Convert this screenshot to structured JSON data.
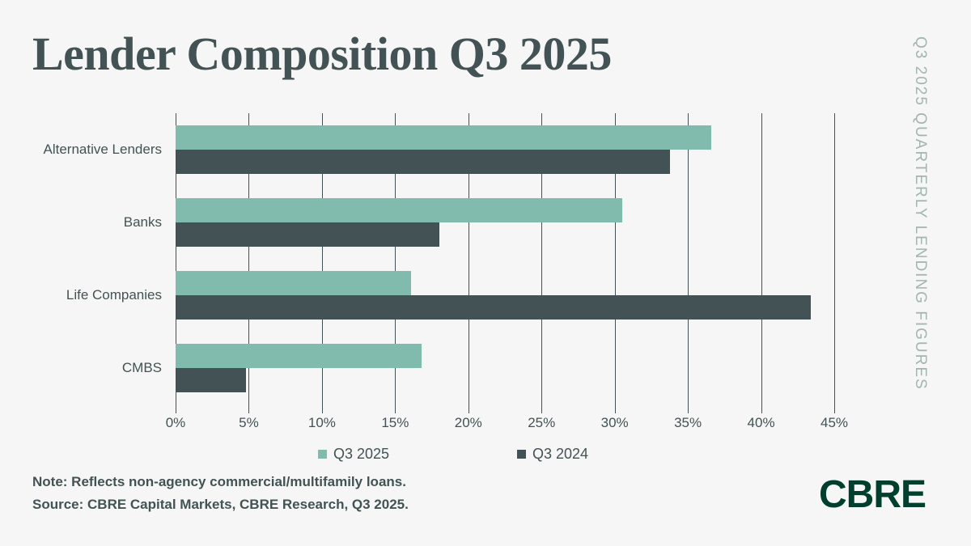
{
  "title": "Lender Composition Q3 2025",
  "tagline": "Q3 2025 QUARTERLY LENDING FIGURES",
  "note": {
    "line1": "Note: Reflects non-agency commercial/multifamily loans.",
    "line2": "Source: CBRE Capital Markets, CBRE Research, Q3 2025."
  },
  "logo_text": "CBRE",
  "colors": {
    "background": "#f5f6f5",
    "q3_2025_bar": "#80bbad",
    "q3_2024_bar": "#435254",
    "title_text": "#435254",
    "tagline_text": "#a3b5af",
    "axis_text": "#435254",
    "gridline": "#435254",
    "logo_green": "#003f2d"
  },
  "chart_data": {
    "type": "bar",
    "orientation": "horizontal",
    "title": "Lender Composition Q3 2025",
    "categories": [
      "Alternative Lenders",
      "Banks",
      "Life Companies",
      "CMBS"
    ],
    "series": [
      {
        "name": "Q3 2025",
        "color": "#80bbad",
        "values": [
          36.6,
          30.5,
          16.1,
          16.8
        ]
      },
      {
        "name": "Q3 2024",
        "color": "#435254",
        "values": [
          33.8,
          18.0,
          43.4,
          4.8
        ]
      }
    ],
    "xlabel": "",
    "ylabel": "",
    "xlim": [
      0,
      45
    ],
    "x_step": 5,
    "x_ticks": [
      "0%",
      "5%",
      "10%",
      "15%",
      "20%",
      "25%",
      "30%",
      "35%",
      "40%",
      "45%"
    ],
    "grid": true,
    "legend_position": "bottom"
  }
}
